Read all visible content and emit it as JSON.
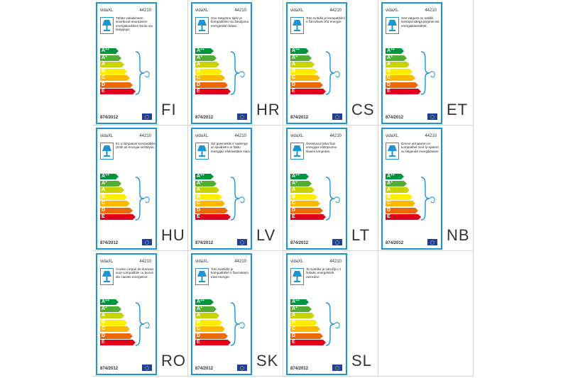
{
  "labels": [
    {
      "code": "FI",
      "brand": "vidaXL",
      "model": "44210",
      "text": "Tähän valaisimeen soveltuvat seuraavien energialuokkien kuulu-via lamppuja:",
      "regulation": "874/2012"
    },
    {
      "code": "HR",
      "brand": "vidaXL",
      "model": "44210",
      "text": "Ovo rasvjetno tijelo je kompatibilno sa žaruljama energetskih klasa:",
      "regulation": "874/2012"
    },
    {
      "code": "CS",
      "brand": "vidaXL",
      "model": "44210",
      "text": "Toto svítidlo je kompatibilní s žárovkami tříd energie:",
      "regulation": "874/2012"
    },
    {
      "code": "ET",
      "brand": "vidaXL",
      "model": "44210",
      "text": "See valgusti on sobilik lambipirnidega järgmis-est energiaklassidest:",
      "regulation": "874/2012"
    },
    {
      "code": "HU",
      "brand": "vidaXL",
      "model": "44210",
      "text": "Ez a lámpatest kompatibilis izzók az energia osztályok:",
      "regulation": "874/2012"
    },
    {
      "code": "LV",
      "brand": "vidaXL",
      "model": "44210",
      "text": "Šis gaismeklis ir saderīgs ar spuldzēm ar šādu energijas efektivitātes klasi:",
      "regulation": "874/2012"
    },
    {
      "code": "LT",
      "brand": "vidaXL",
      "model": "44210",
      "text": "Šviestuvui tinka šios energijos efektyvumo klasės lemputės:",
      "regulation": "874/2012"
    },
    {
      "code": "NB",
      "brand": "vidaXL",
      "model": "44210",
      "text": "Denne armaturen er kompatibel med ly-spærer av følgende energiklasser:",
      "regulation": "874/2012"
    },
    {
      "code": "RO",
      "brand": "vidaXL",
      "model": "44210",
      "text": "Aceste corpuri de iluminat sunt compatibile cu becuri din clasele energetice:",
      "regulation": "874/2012"
    },
    {
      "code": "SK",
      "brand": "vidaXL",
      "model": "44210",
      "text": "Toto svietidlo je kompatibilné s žiarovkami tried energie:",
      "regulation": "874/2012"
    },
    {
      "code": "SL",
      "brand": "vidaXL",
      "model": "44210",
      "text": "Ta svetilka je združlji-v z žebulic energetskih razredov:",
      "regulation": "874/2012"
    }
  ],
  "energy_classes": [
    {
      "letter": "A",
      "sup": "++",
      "color": "#00963f"
    },
    {
      "letter": "A",
      "sup": "+",
      "color": "#52ae32"
    },
    {
      "letter": "A",
      "sup": "",
      "color": "#c8d400"
    },
    {
      "letter": "B",
      "sup": "",
      "color": "#ffed00"
    },
    {
      "letter": "C",
      "sup": "",
      "color": "#fbba00"
    },
    {
      "letter": "D",
      "sup": "",
      "color": "#eb6909"
    },
    {
      "letter": "E",
      "sup": "",
      "color": "#e2001a"
    }
  ],
  "colors": {
    "border": "#1c95d2",
    "flag": "#1f3f9c"
  }
}
